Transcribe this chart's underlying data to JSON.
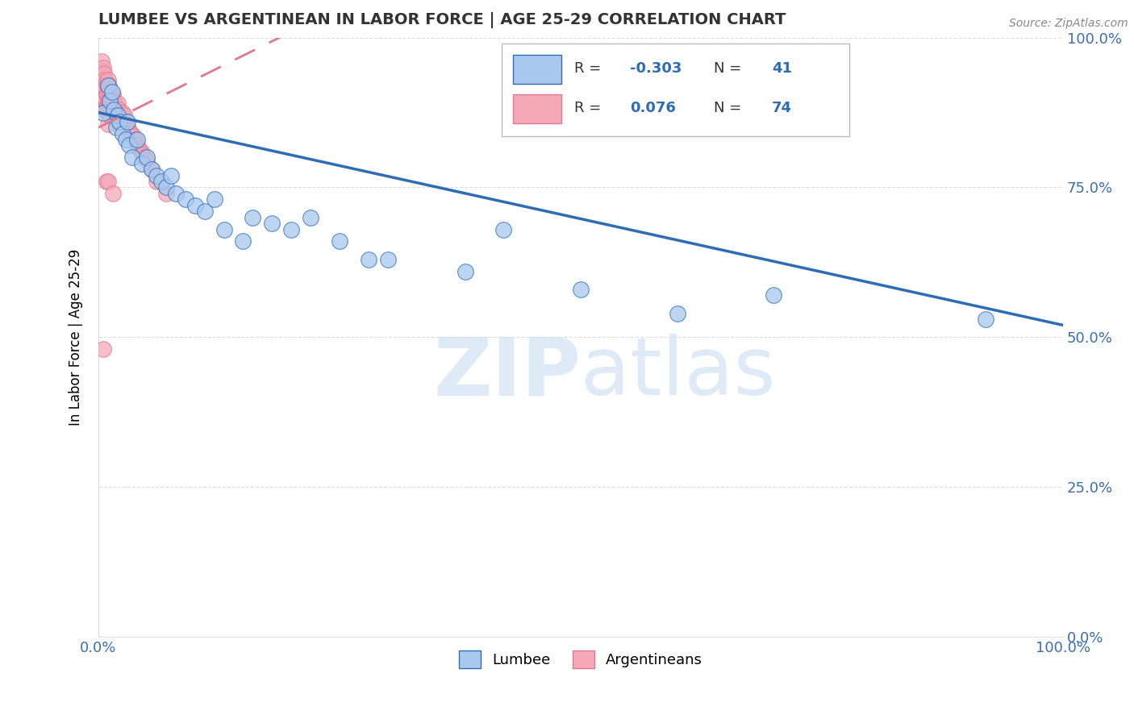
{
  "title": "LUMBEE VS ARGENTINEAN IN LABOR FORCE | AGE 25-29 CORRELATION CHART",
  "source_text": "Source: ZipAtlas.com",
  "ylabel": "In Labor Force | Age 25-29",
  "xlim": [
    0.0,
    1.0
  ],
  "ylim": [
    0.0,
    1.0
  ],
  "lumbee_color": "#A8C8EE",
  "argentinean_color": "#F4A8B8",
  "lumbee_line_color": "#2E6DB4",
  "argentinean_line_color": "#E07890",
  "legend_R_lumbee": "-0.303",
  "legend_N_lumbee": "41",
  "legend_R_argentinean": "0.076",
  "legend_N_argentinean": "74",
  "lumbee_x": [
    0.005,
    0.01,
    0.012,
    0.014,
    0.016,
    0.018,
    0.02,
    0.022,
    0.025,
    0.028,
    0.03,
    0.032,
    0.035,
    0.04,
    0.045,
    0.05,
    0.055,
    0.06,
    0.065,
    0.07,
    0.075,
    0.08,
    0.09,
    0.1,
    0.11,
    0.12,
    0.13,
    0.15,
    0.16,
    0.18,
    0.2,
    0.22,
    0.25,
    0.28,
    0.3,
    0.38,
    0.42,
    0.5,
    0.6,
    0.7,
    0.92
  ],
  "lumbee_y": [
    0.875,
    0.92,
    0.895,
    0.91,
    0.88,
    0.85,
    0.87,
    0.86,
    0.84,
    0.83,
    0.86,
    0.82,
    0.8,
    0.83,
    0.79,
    0.8,
    0.78,
    0.77,
    0.76,
    0.75,
    0.77,
    0.74,
    0.73,
    0.72,
    0.71,
    0.73,
    0.68,
    0.66,
    0.7,
    0.69,
    0.68,
    0.7,
    0.66,
    0.63,
    0.63,
    0.61,
    0.68,
    0.58,
    0.54,
    0.57,
    0.53
  ],
  "argentinean_x": [
    0.002,
    0.003,
    0.003,
    0.004,
    0.004,
    0.004,
    0.005,
    0.005,
    0.005,
    0.005,
    0.006,
    0.006,
    0.006,
    0.006,
    0.007,
    0.007,
    0.007,
    0.007,
    0.008,
    0.008,
    0.008,
    0.009,
    0.009,
    0.009,
    0.01,
    0.01,
    0.01,
    0.01,
    0.01,
    0.011,
    0.011,
    0.012,
    0.012,
    0.012,
    0.013,
    0.013,
    0.014,
    0.015,
    0.015,
    0.016,
    0.016,
    0.017,
    0.018,
    0.018,
    0.019,
    0.02,
    0.02,
    0.021,
    0.022,
    0.022,
    0.023,
    0.024,
    0.025,
    0.026,
    0.027,
    0.028,
    0.03,
    0.032,
    0.034,
    0.036,
    0.038,
    0.04,
    0.042,
    0.044,
    0.046,
    0.048,
    0.05,
    0.055,
    0.06,
    0.07,
    0.005,
    0.008,
    0.01,
    0.015
  ],
  "argentinean_y": [
    0.94,
    0.93,
    0.96,
    0.92,
    0.945,
    0.91,
    0.935,
    0.95,
    0.92,
    0.9,
    0.94,
    0.92,
    0.9,
    0.88,
    0.93,
    0.915,
    0.9,
    0.88,
    0.925,
    0.905,
    0.885,
    0.92,
    0.905,
    0.885,
    0.93,
    0.915,
    0.895,
    0.875,
    0.855,
    0.92,
    0.9,
    0.91,
    0.89,
    0.87,
    0.9,
    0.88,
    0.895,
    0.905,
    0.885,
    0.895,
    0.875,
    0.89,
    0.885,
    0.875,
    0.88,
    0.89,
    0.87,
    0.88,
    0.875,
    0.855,
    0.87,
    0.865,
    0.875,
    0.86,
    0.87,
    0.855,
    0.85,
    0.845,
    0.84,
    0.835,
    0.83,
    0.82,
    0.815,
    0.81,
    0.805,
    0.8,
    0.795,
    0.78,
    0.76,
    0.74,
    0.48,
    0.76,
    0.76,
    0.74
  ],
  "grid_color": "#DDDDDD",
  "tick_color": "#3A6FB0",
  "title_color": "#333333",
  "watermark_color": "#C8DCF0"
}
